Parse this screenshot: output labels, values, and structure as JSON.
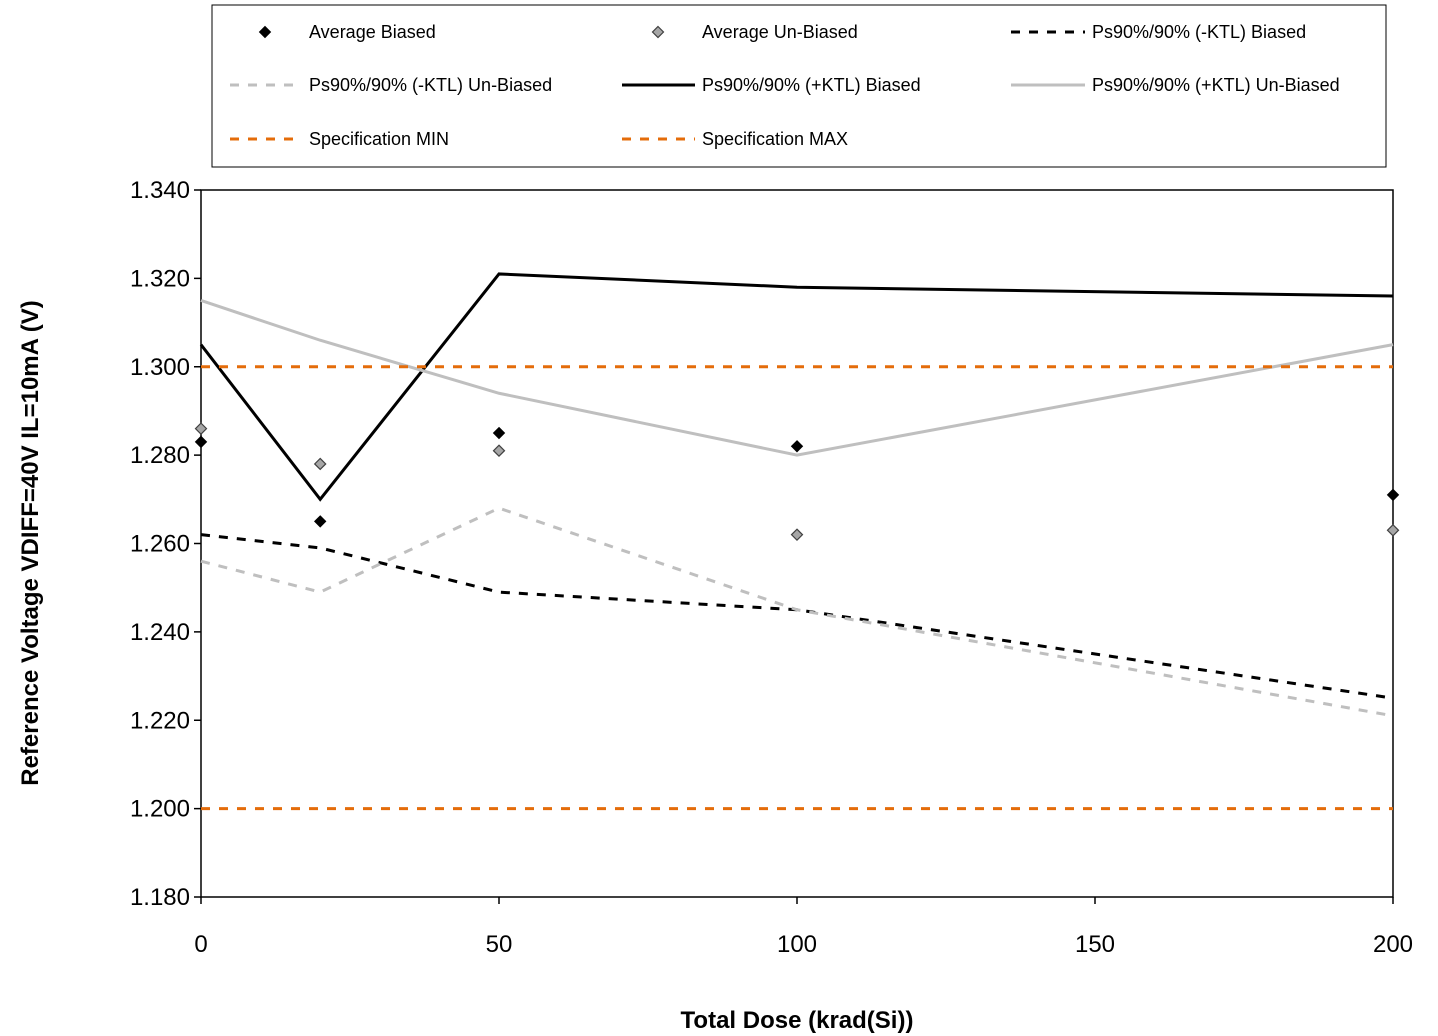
{
  "chart_data": {
    "type": "line",
    "title": "",
    "xlabel": "Total Dose (krad(Si))",
    "ylabel": "Reference Voltage VDIFF=40V IL=10mA (V)",
    "xlim": [
      0,
      200
    ],
    "ylim": [
      1.18,
      1.34
    ],
    "xticks": [
      0,
      50,
      100,
      150,
      200
    ],
    "xtick_labels": [
      "0",
      "50",
      "100",
      "150",
      "200"
    ],
    "yticks": [
      1.18,
      1.2,
      1.22,
      1.24,
      1.26,
      1.28,
      1.3,
      1.32,
      1.34
    ],
    "ytick_labels": [
      "1.180",
      "1.200",
      "1.220",
      "1.240",
      "1.260",
      "1.280",
      "1.300",
      "1.320",
      "1.340"
    ],
    "grid": false,
    "legend_position": "top",
    "series": [
      {
        "name": "Average Biased",
        "kind": "marker",
        "marker": "diamond",
        "color": "#000000",
        "x": [
          0,
          20,
          50,
          100,
          200
        ],
        "y": [
          1.283,
          1.265,
          1.285,
          1.282,
          1.271
        ]
      },
      {
        "name": "Average Un-Biased",
        "kind": "marker",
        "marker": "diamond-open",
        "color": "#a6a6a6",
        "x": [
          0,
          20,
          50,
          100,
          200
        ],
        "y": [
          1.286,
          1.278,
          1.281,
          1.262,
          1.263
        ]
      },
      {
        "name": "Ps90%/90% (-KTL) Biased",
        "kind": "line",
        "dash": true,
        "color": "#000000",
        "x": [
          0,
          20,
          50,
          100,
          200
        ],
        "y": [
          1.262,
          1.259,
          1.249,
          1.245,
          1.225
        ]
      },
      {
        "name": "Ps90%/90% (-KTL) Un-Biased",
        "kind": "line",
        "dash": true,
        "color": "#bfbfbf",
        "x": [
          0,
          20,
          50,
          100,
          200
        ],
        "y": [
          1.256,
          1.249,
          1.268,
          1.245,
          1.221
        ]
      },
      {
        "name": "Ps90%/90% (+KTL) Biased",
        "kind": "line",
        "dash": false,
        "color": "#000000",
        "x": [
          0,
          20,
          50,
          100,
          200
        ],
        "y": [
          1.305,
          1.27,
          1.321,
          1.318,
          1.316
        ]
      },
      {
        "name": "Ps90%/90% (+KTL) Un-Biased",
        "kind": "line",
        "dash": false,
        "color": "#bfbfbf",
        "x": [
          0,
          20,
          50,
          100,
          200
        ],
        "y": [
          1.315,
          1.306,
          1.294,
          1.28,
          1.305
        ]
      },
      {
        "name": "Specification MIN",
        "kind": "line",
        "dash": true,
        "color": "#e46c0a",
        "x": [
          0,
          200
        ],
        "y": [
          1.2,
          1.2
        ]
      },
      {
        "name": "Specification MAX",
        "kind": "line",
        "dash": true,
        "color": "#e46c0a",
        "x": [
          0,
          200
        ],
        "y": [
          1.3,
          1.3
        ]
      }
    ]
  }
}
